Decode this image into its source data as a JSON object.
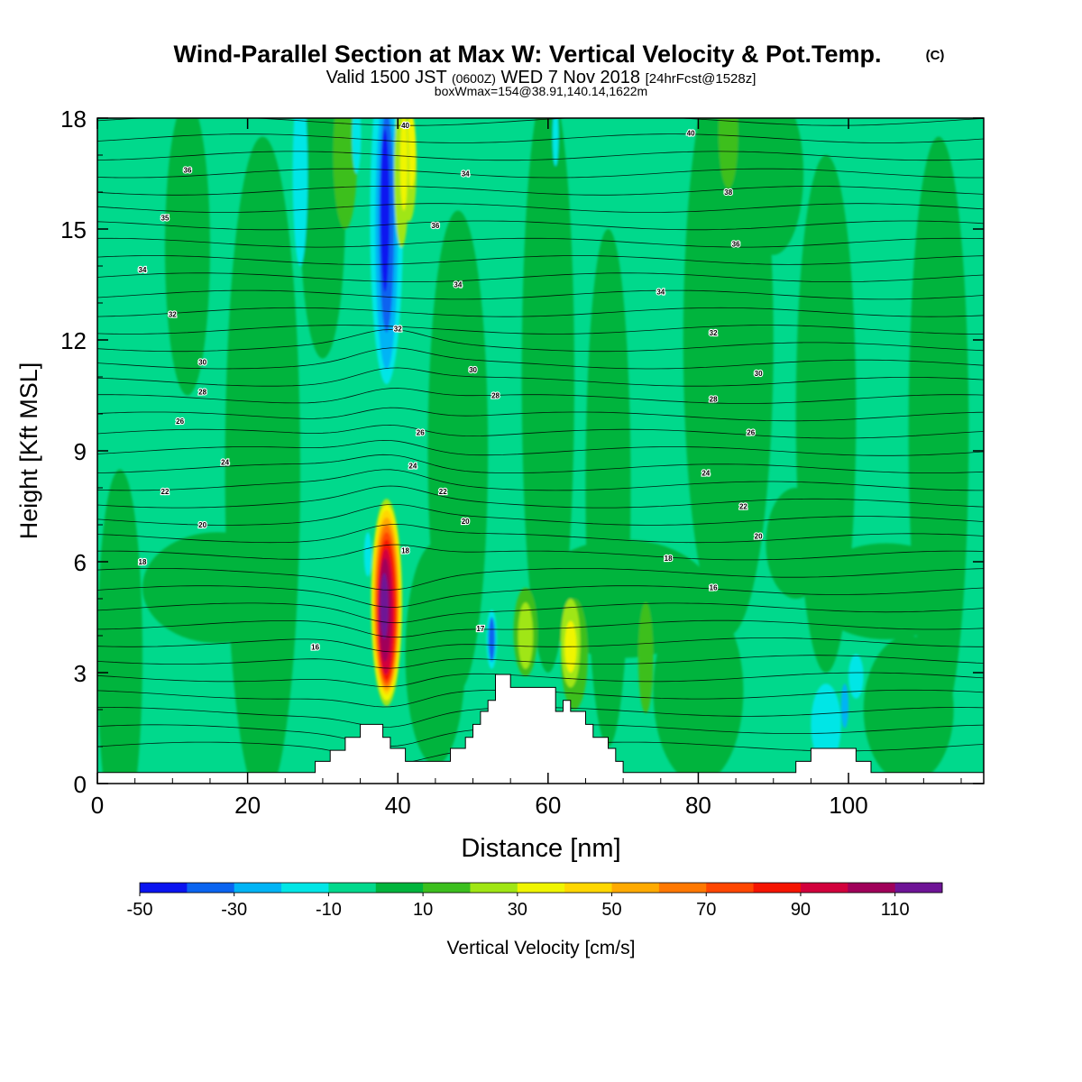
{
  "titles": {
    "main": "Wind-Parallel Section at Max W: Vertical Velocity & Pot.Temp.",
    "copyright": "(C)",
    "valid_prefix": "Valid 1500 JST",
    "valid_utc": "(0600Z)",
    "valid_date": "WED 7 Nov 2018",
    "forecast": "[24hrFcst@1528z]",
    "box_info": "boxWmax=154@38.91,140.14,1622m"
  },
  "chart_data": {
    "type": "heatmap",
    "xlabel": "Distance [nm]",
    "ylabel": "Height [Kft MSL]",
    "xlim": [
      0,
      118
    ],
    "ylim": [
      0,
      18
    ],
    "x_ticks": [
      0,
      20,
      40,
      60,
      80,
      100
    ],
    "y_ticks": [
      0,
      3,
      6,
      9,
      12,
      15,
      18
    ],
    "colorbar": {
      "label": "Vertical Velocity [cm/s]",
      "bounds": [
        -50,
        -40,
        -30,
        -20,
        -10,
        0,
        10,
        20,
        30,
        40,
        50,
        60,
        70,
        80,
        90,
        100,
        110,
        120
      ],
      "tick_labels": [
        -50,
        -30,
        -10,
        10,
        30,
        50,
        70,
        90,
        110
      ],
      "colors": [
        "#0a14f0",
        "#0a64f0",
        "#00b4f5",
        "#00e6e6",
        "#00d98c",
        "#00b43c",
        "#3cbf1e",
        "#a0e614",
        "#f0f500",
        "#ffd700",
        "#ffaa00",
        "#ff7800",
        "#ff4600",
        "#f51400",
        "#d2003c",
        "#a0005a",
        "#6e1496"
      ]
    },
    "background_level": "0 to 10",
    "updraft_max": {
      "x": 38.5,
      "height": 5.0,
      "value_class": "110-120"
    },
    "downdraft_min": {
      "x": 38,
      "height": 15,
      "value_class": "-50 to -40"
    },
    "terrain_profile": {
      "x": [
        0,
        29,
        29,
        31,
        31,
        33,
        33,
        35,
        35,
        38,
        38,
        39,
        39,
        41,
        41,
        47,
        47,
        49,
        49,
        50,
        50,
        51,
        51,
        52,
        52,
        53,
        53,
        55,
        55,
        57,
        57,
        61,
        61,
        62,
        62,
        63,
        63,
        65,
        65,
        66,
        66,
        68,
        68,
        69,
        69,
        70,
        70,
        72,
        72,
        74,
        74,
        76,
        76,
        78,
        78,
        93,
        93,
        95,
        95,
        101,
        101,
        103,
        103,
        118
      ],
      "height": [
        0.3,
        0.3,
        0.6,
        0.6,
        0.9,
        0.9,
        1.25,
        1.25,
        1.6,
        1.6,
        1.25,
        1.25,
        0.95,
        0.95,
        0.6,
        0.6,
        0.95,
        0.95,
        1.25,
        1.25,
        1.6,
        1.6,
        1.95,
        1.95,
        2.25,
        2.25,
        2.95,
        2.95,
        2.6,
        2.6,
        2.6,
        2.6,
        1.95,
        1.95,
        2.25,
        2.25,
        1.95,
        1.95,
        1.6,
        1.6,
        1.25,
        1.25,
        0.95,
        0.95,
        0.6,
        0.6,
        0.3,
        0.3,
        0.3,
        0.3,
        0.3,
        0.3,
        0.3,
        0.3,
        0.3,
        0.3,
        0.6,
        0.6,
        0.95,
        0.95,
        0.6,
        0.6,
        0.3,
        0.3
      ]
    },
    "contour_labels": [
      {
        "text": "40",
        "x": 41,
        "y": 17.8
      },
      {
        "text": "40",
        "x": 79,
        "y": 17.6
      },
      {
        "text": "36",
        "x": 12,
        "y": 16.6
      },
      {
        "text": "34",
        "x": 49,
        "y": 16.5
      },
      {
        "text": "38",
        "x": 84,
        "y": 16.0
      },
      {
        "text": "35",
        "x": 9,
        "y": 15.3
      },
      {
        "text": "36",
        "x": 45,
        "y": 15.1
      },
      {
        "text": "36",
        "x": 85,
        "y": 14.6
      },
      {
        "text": "34",
        "x": 6,
        "y": 13.9
      },
      {
        "text": "34",
        "x": 48,
        "y": 13.5
      },
      {
        "text": "34",
        "x": 75,
        "y": 13.3
      },
      {
        "text": "32",
        "x": 10,
        "y": 12.7
      },
      {
        "text": "32",
        "x": 40,
        "y": 12.3
      },
      {
        "text": "32",
        "x": 82,
        "y": 12.2
      },
      {
        "text": "30",
        "x": 14,
        "y": 11.4
      },
      {
        "text": "30",
        "x": 50,
        "y": 11.2
      },
      {
        "text": "30",
        "x": 88,
        "y": 11.1
      },
      {
        "text": "28",
        "x": 14,
        "y": 10.6
      },
      {
        "text": "28",
        "x": 53,
        "y": 10.5
      },
      {
        "text": "28",
        "x": 82,
        "y": 10.4
      },
      {
        "text": "26",
        "x": 11,
        "y": 9.8
      },
      {
        "text": "26",
        "x": 43,
        "y": 9.5
      },
      {
        "text": "26",
        "x": 87,
        "y": 9.5
      },
      {
        "text": "24",
        "x": 17,
        "y": 8.7
      },
      {
        "text": "24",
        "x": 42,
        "y": 8.6
      },
      {
        "text": "24",
        "x": 81,
        "y": 8.4
      },
      {
        "text": "22",
        "x": 9,
        "y": 7.9
      },
      {
        "text": "22",
        "x": 46,
        "y": 7.9
      },
      {
        "text": "22",
        "x": 86,
        "y": 7.5
      },
      {
        "text": "20",
        "x": 14,
        "y": 7.0
      },
      {
        "text": "20",
        "x": 49,
        "y": 7.1
      },
      {
        "text": "20",
        "x": 88,
        "y": 6.7
      },
      {
        "text": "18",
        "x": 6,
        "y": 6.0
      },
      {
        "text": "18",
        "x": 41,
        "y": 6.3
      },
      {
        "text": "18",
        "x": 76,
        "y": 6.1
      },
      {
        "text": "16",
        "x": 82,
        "y": 5.3
      },
      {
        "text": "16",
        "x": 29,
        "y": 3.7
      },
      {
        "text": "17",
        "x": 51,
        "y": 4.2
      }
    ]
  }
}
